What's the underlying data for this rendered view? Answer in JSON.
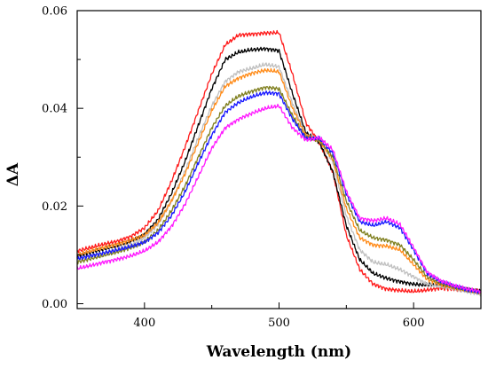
{
  "chart_data": {
    "type": "line",
    "xlabel": "Wavelength (nm)",
    "ylabel": "ΔA",
    "xlim": [
      350,
      650
    ],
    "ylim": [
      -0.001,
      0.06
    ],
    "x_ticks": [
      400,
      500,
      600
    ],
    "x_tick_labels": [
      "400",
      "500",
      "600"
    ],
    "y_ticks": [
      0.0,
      0.02,
      0.04,
      0.06
    ],
    "y_tick_labels": [
      "0.00",
      "0.02",
      "0.04",
      "0.06"
    ],
    "grid": false,
    "legend": "none",
    "x": [
      350,
      360,
      370,
      380,
      390,
      400,
      410,
      420,
      430,
      440,
      450,
      460,
      470,
      480,
      490,
      500,
      510,
      520,
      530,
      540,
      550,
      560,
      570,
      580,
      590,
      600,
      610,
      620,
      630,
      640,
      650
    ],
    "series": [
      {
        "color": "#ff1a1a",
        "values": [
          0.0108,
          0.0115,
          0.0122,
          0.0128,
          0.0138,
          0.0155,
          0.019,
          0.025,
          0.032,
          0.0395,
          0.047,
          0.053,
          0.055,
          0.0552,
          0.0554,
          0.0555,
          0.047,
          0.037,
          0.033,
          0.027,
          0.014,
          0.007,
          0.004,
          0.003,
          0.0027,
          0.0025,
          0.0028,
          0.0032,
          0.003,
          0.0027,
          0.0025
        ]
      },
      {
        "color": "#000000",
        "values": [
          0.0098,
          0.0105,
          0.0112,
          0.0119,
          0.0128,
          0.0142,
          0.0172,
          0.0225,
          0.029,
          0.0365,
          0.044,
          0.05,
          0.0515,
          0.052,
          0.0522,
          0.0518,
          0.043,
          0.035,
          0.033,
          0.027,
          0.016,
          0.009,
          0.0062,
          0.0052,
          0.0045,
          0.004,
          0.0038,
          0.004,
          0.0035,
          0.003,
          0.0025
        ]
      },
      {
        "color": "#c0c0c0",
        "values": [
          0.009,
          0.0097,
          0.0104,
          0.0112,
          0.0121,
          0.0135,
          0.0162,
          0.021,
          0.027,
          0.034,
          0.0405,
          0.0455,
          0.0475,
          0.0482,
          0.049,
          0.0485,
          0.041,
          0.0345,
          0.0335,
          0.029,
          0.018,
          0.011,
          0.0085,
          0.008,
          0.007,
          0.0055,
          0.004,
          0.0035,
          0.003,
          0.0025,
          0.002
        ]
      },
      {
        "color": "#ff8c1a",
        "values": [
          0.01,
          0.0108,
          0.0115,
          0.0122,
          0.013,
          0.014,
          0.0165,
          0.021,
          0.0265,
          0.033,
          0.0395,
          0.0445,
          0.0462,
          0.0472,
          0.0478,
          0.0475,
          0.04,
          0.0345,
          0.0335,
          0.0295,
          0.0195,
          0.0135,
          0.012,
          0.0118,
          0.011,
          0.008,
          0.005,
          0.004,
          0.0033,
          0.0027,
          0.0022
        ]
      },
      {
        "color": "#808020",
        "values": [
          0.0085,
          0.0092,
          0.0099,
          0.0106,
          0.0115,
          0.0127,
          0.015,
          0.019,
          0.024,
          0.03,
          0.036,
          0.0405,
          0.0425,
          0.0435,
          0.0443,
          0.044,
          0.0385,
          0.034,
          0.0335,
          0.03,
          0.021,
          0.015,
          0.0135,
          0.013,
          0.012,
          0.009,
          0.0055,
          0.0042,
          0.0035,
          0.0028,
          0.0022
        ]
      },
      {
        "color": "#1a1aff",
        "values": [
          0.0092,
          0.0098,
          0.0104,
          0.011,
          0.0117,
          0.0126,
          0.0145,
          0.018,
          0.0228,
          0.0288,
          0.0345,
          0.0392,
          0.0412,
          0.0424,
          0.0432,
          0.043,
          0.0378,
          0.0338,
          0.0338,
          0.0308,
          0.0225,
          0.0168,
          0.016,
          0.0168,
          0.0155,
          0.011,
          0.0062,
          0.0045,
          0.0036,
          0.0029,
          0.0024
        ]
      },
      {
        "color": "#ff1aff",
        "values": [
          0.0072,
          0.0078,
          0.0085,
          0.0091,
          0.0098,
          0.0108,
          0.0126,
          0.0158,
          0.0203,
          0.026,
          0.0318,
          0.036,
          0.0378,
          0.039,
          0.04,
          0.0405,
          0.036,
          0.0335,
          0.034,
          0.0315,
          0.023,
          0.0175,
          0.017,
          0.0175,
          0.0162,
          0.0115,
          0.0065,
          0.0047,
          0.0037,
          0.003,
          0.0025
        ]
      }
    ]
  }
}
